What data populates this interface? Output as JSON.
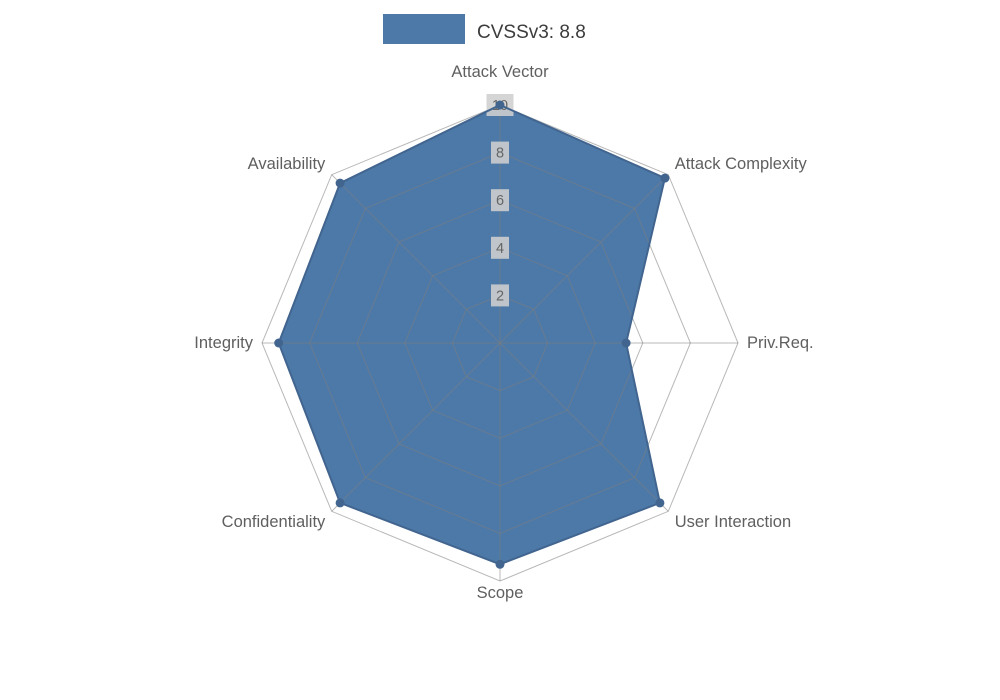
{
  "legend": {
    "label": "CVSSv3: 8.8"
  },
  "chart_data": {
    "type": "radar",
    "title": "CVSSv3: 8.8",
    "categories": [
      "Attack Vector",
      "Attack Complexity",
      "Priv.Req.",
      "User Interaction",
      "Scope",
      "Confidentiality",
      "Integrity",
      "Availability"
    ],
    "series": [
      {
        "name": "CVSSv3: 8.8",
        "values": [
          10,
          9.8,
          5.3,
          9.5,
          9.3,
          9.5,
          9.3,
          9.5
        ]
      }
    ],
    "ticks": [
      2,
      4,
      6,
      8,
      10
    ],
    "rlim": [
      0,
      10
    ],
    "grid": true,
    "legend_position": "top",
    "fill_color": "#4d79a8",
    "line_color": "#41658f",
    "grid_color": "#7d7d7d",
    "colors": {
      "tick_label_bg": "#cfcfcf",
      "tick_label_text": "#666666",
      "axis_label_text": "#5f5f5f",
      "legend_text": "#3c3c3c",
      "background": "#ffffff"
    }
  }
}
